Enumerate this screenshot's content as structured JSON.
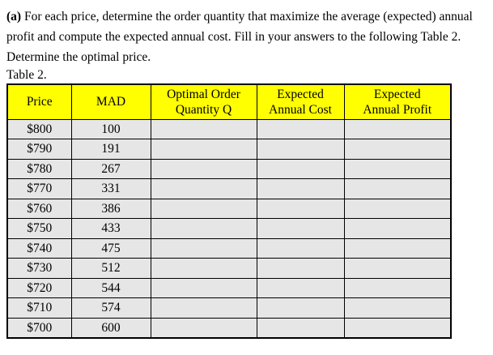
{
  "colors": {
    "page_bg": "#ffffff",
    "header_bg": "#ffff00",
    "row_bg": "#e6e6e6",
    "border_color": "#000000",
    "text_color": "#000000"
  },
  "paragraph": {
    "bold_prefix": "(a)",
    "line1_rest": " For each price, determine the order quantity that maximize the average (expected) annual",
    "line2": "profit and compute the expected annual cost. Fill in your answers to the following Table 2.",
    "line3": "Determine the optimal price."
  },
  "table_label": "Table 2.",
  "table": {
    "header": {
      "price": "Price",
      "mad": "MAD",
      "optimal_line1": "Optimal Order",
      "optimal_line2": "Quantity Q",
      "cost_line1": "Expected",
      "cost_line2": "Annual Cost",
      "profit_line1": "Expected",
      "profit_line2": "Annual Profit"
    },
    "rows": [
      {
        "price": "$800",
        "mad": "100",
        "q": "",
        "cost": "",
        "profit": ""
      },
      {
        "price": "$790",
        "mad": "191",
        "q": "",
        "cost": "",
        "profit": ""
      },
      {
        "price": "$780",
        "mad": "267",
        "q": "",
        "cost": "",
        "profit": ""
      },
      {
        "price": "$770",
        "mad": "331",
        "q": "",
        "cost": "",
        "profit": ""
      },
      {
        "price": "$760",
        "mad": "386",
        "q": "",
        "cost": "",
        "profit": ""
      },
      {
        "price": "$750",
        "mad": "433",
        "q": "",
        "cost": "",
        "profit": ""
      },
      {
        "price": "$740",
        "mad": "475",
        "q": "",
        "cost": "",
        "profit": ""
      },
      {
        "price": "$730",
        "mad": "512",
        "q": "",
        "cost": "",
        "profit": ""
      },
      {
        "price": "$720",
        "mad": "544",
        "q": "",
        "cost": "",
        "profit": ""
      },
      {
        "price": "$710",
        "mad": "574",
        "q": "",
        "cost": "",
        "profit": ""
      },
      {
        "price": "$700",
        "mad": "600",
        "q": "",
        "cost": "",
        "profit": ""
      }
    ]
  }
}
